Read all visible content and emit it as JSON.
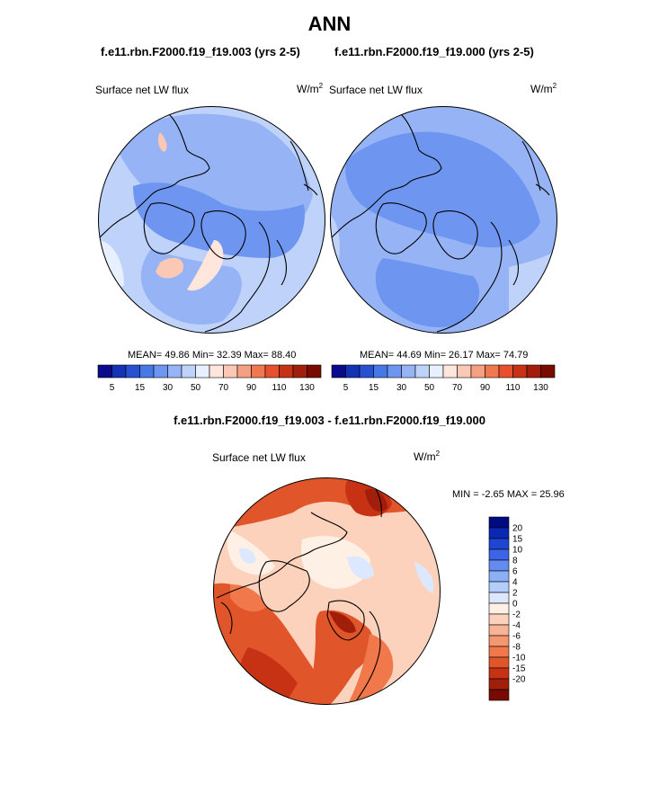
{
  "header": {
    "title": "ANN",
    "left_case": "f.e11.rbn.F2000.f19_f19.003 (yrs 2-5)",
    "right_case": "f.e11.rbn.F2000.f19_f19.000 (yrs 2-5)",
    "diff_title": "f.e11.rbn.F2000.f19_f19.003 - f.e11.rbn.F2000.f19_f19.000"
  },
  "panels": {
    "left": {
      "variable": "Surface net LW flux",
      "units": "W/m",
      "units_sup": "2",
      "stats": "MEAN=  49.86  Min=  32.39  Max=  88.40"
    },
    "right": {
      "variable": "Surface net LW flux",
      "units": "W/m",
      "units_sup": "2",
      "stats": "MEAN=  44.69  Min=  26.17  Max=  74.79"
    },
    "diff": {
      "variable": "Surface net LW flux",
      "units": "W/m",
      "units_sup": "2",
      "stats": "MIN =  -2.65 MAX =  25.96"
    }
  },
  "colorbar_main": {
    "colors": [
      "#0a0a8c",
      "#1432b4",
      "#2850d2",
      "#4678e6",
      "#6e96f0",
      "#96b4f5",
      "#bed2fa",
      "#e6f0ff",
      "#ffe6dc",
      "#fac8b4",
      "#f5a082",
      "#f07850",
      "#e6502d",
      "#c83214",
      "#a01e0a",
      "#780a00"
    ],
    "tick_labels": [
      "5",
      "15",
      "30",
      "50",
      "70",
      "90",
      "110",
      "130"
    ]
  },
  "colorbar_diff": {
    "colors": [
      "#000a82",
      "#0a28b4",
      "#1e46d2",
      "#3c64e6",
      "#648cf0",
      "#8cb0f5",
      "#b4cdfa",
      "#dce8ff",
      "#fff0e6",
      "#fcd2bc",
      "#f8b496",
      "#f4966e",
      "#f0784b",
      "#e1552a",
      "#c83214",
      "#a01e0a",
      "#780a05"
    ],
    "labels": [
      "20",
      "15",
      "10",
      "8",
      "6",
      "4",
      "2",
      "0",
      "-2",
      "-4",
      "-6",
      "-8",
      "-10",
      "-15",
      "-20"
    ]
  }
}
